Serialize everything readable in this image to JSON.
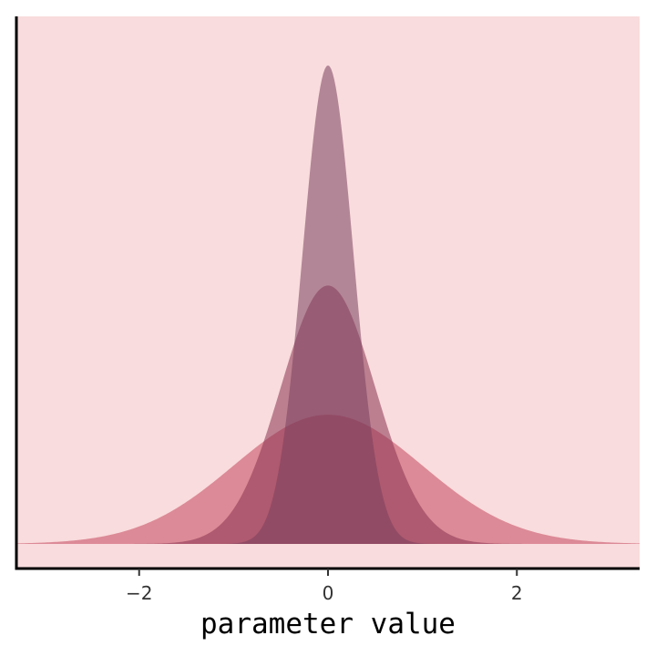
{
  "chart_data": {
    "type": "area",
    "title": "",
    "xlabel": "parameter value",
    "ylabel": "",
    "xlim": [
      -3.3,
      3.3
    ],
    "ylim": [
      0,
      1.55
    ],
    "x_ticks": [
      {
        "value": -2,
        "label": "−2"
      },
      {
        "value": 0,
        "label": "0"
      },
      {
        "value": 2,
        "label": "2"
      }
    ],
    "grid": false,
    "legend": "none",
    "background_color": "#f9dcdd",
    "series": [
      {
        "distribution": "normal",
        "mean": 0,
        "sd": 1.0,
        "color": "#c4475c",
        "opacity": 0.55
      },
      {
        "distribution": "normal",
        "mean": 0,
        "sd": 0.5,
        "color": "#8a3350",
        "opacity": 0.55
      },
      {
        "distribution": "normal",
        "mean": 0,
        "sd": 0.27,
        "color": "#7a3f5c",
        "opacity": 0.55
      }
    ]
  }
}
